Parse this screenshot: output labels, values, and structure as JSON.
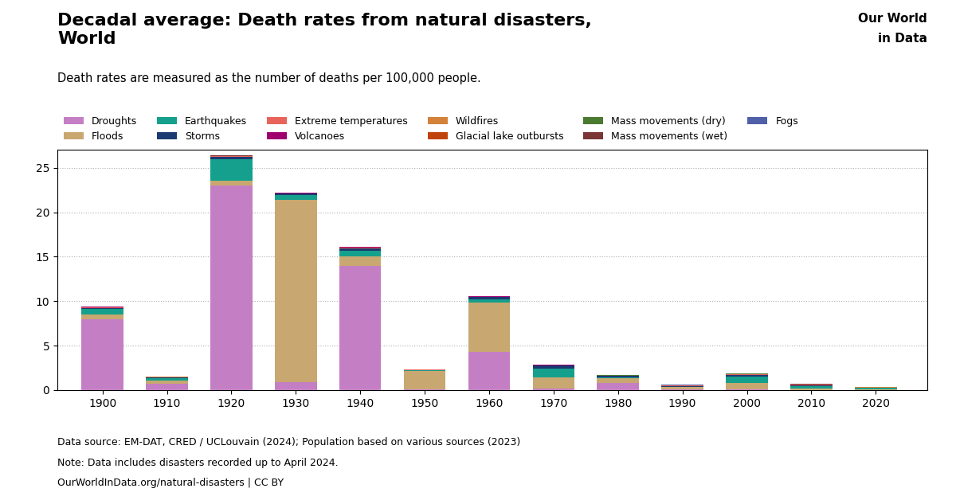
{
  "chart_data": {
    "type": "bar",
    "stacked": true,
    "title": "Decadal average: Death rates from natural disasters,\nWorld",
    "subtitle": "Death rates are measured as the number of deaths per 100,000 people.",
    "annotations": [
      "Data source: EM-DAT, CRED / UCLouvain (2024); Population based on various sources (2023)",
      "Note: Data includes disasters recorded up to April 2024.",
      "OurWorldInData.org/natural-disasters | CC BY",
      "Our World",
      "in Data"
    ],
    "x": [
      1900,
      1910,
      1920,
      1930,
      1940,
      1950,
      1960,
      1970,
      1980,
      1990,
      2000,
      2010,
      2020
    ],
    "xlim": [
      1893,
      2028
    ],
    "xticks": [
      1900,
      1910,
      1920,
      1930,
      1940,
      1950,
      1960,
      1970,
      1980,
      1990,
      2000,
      2010,
      2020
    ],
    "ylim": [
      0,
      27
    ],
    "yticks": [
      0,
      5,
      10,
      15,
      20,
      25
    ],
    "grid": true,
    "legend": "top",
    "series": [
      {
        "name": "Droughts",
        "color": "#c47fc4",
        "values": [
          8.0,
          0.7,
          23.0,
          0.9,
          14.0,
          0.05,
          4.3,
          0.2,
          0.8,
          0.05,
          0.05,
          0.02,
          0.01
        ]
      },
      {
        "name": "Floods",
        "color": "#c8a870",
        "values": [
          0.5,
          0.4,
          0.5,
          20.5,
          1.0,
          2.1,
          5.5,
          1.2,
          0.5,
          0.25,
          0.7,
          0.15,
          0.08
        ]
      },
      {
        "name": "Earthquakes",
        "color": "#14a08c",
        "values": [
          0.6,
          0.2,
          2.5,
          0.5,
          0.7,
          0.05,
          0.4,
          1.0,
          0.15,
          0.08,
          0.75,
          0.3,
          0.12
        ]
      },
      {
        "name": "Storms",
        "color": "#1c3a72",
        "values": [
          0.15,
          0.08,
          0.25,
          0.18,
          0.25,
          0.06,
          0.25,
          0.35,
          0.12,
          0.08,
          0.15,
          0.08,
          0.04
        ]
      },
      {
        "name": "Extreme temperatures",
        "color": "#e8645a",
        "values": [
          0.08,
          0.04,
          0.04,
          0.04,
          0.08,
          0.02,
          0.04,
          0.04,
          0.04,
          0.04,
          0.12,
          0.04,
          0.04
        ]
      },
      {
        "name": "Volcanoes",
        "color": "#a0006e",
        "values": [
          0.04,
          0.04,
          0.04,
          0.04,
          0.04,
          0.01,
          0.04,
          0.04,
          0.01,
          0.01,
          0.01,
          0.01,
          0.005
        ]
      },
      {
        "name": "Wildfires",
        "color": "#d4813a",
        "values": [
          0.01,
          0.01,
          0.01,
          0.01,
          0.01,
          0.01,
          0.01,
          0.01,
          0.01,
          0.03,
          0.03,
          0.04,
          0.01
        ]
      },
      {
        "name": "Glacial lake outbursts",
        "color": "#c0430b",
        "values": [
          0.005,
          0.005,
          0.005,
          0.005,
          0.005,
          0.005,
          0.005,
          0.005,
          0.005,
          0.005,
          0.005,
          0.005,
          0.002
        ]
      },
      {
        "name": "Mass movements (dry)",
        "color": "#4a7a30",
        "values": [
          0.01,
          0.01,
          0.01,
          0.01,
          0.01,
          0.01,
          0.01,
          0.01,
          0.01,
          0.01,
          0.01,
          0.01,
          0.005
        ]
      },
      {
        "name": "Mass movements (wet)",
        "color": "#7a3535",
        "values": [
          0.01,
          0.01,
          0.01,
          0.01,
          0.01,
          0.01,
          0.01,
          0.01,
          0.01,
          0.01,
          0.01,
          0.01,
          0.005
        ]
      },
      {
        "name": "Fogs",
        "color": "#5060a8",
        "values": [
          0.005,
          0.005,
          0.005,
          0.005,
          0.005,
          0.005,
          0.005,
          0.005,
          0.005,
          0.005,
          0.005,
          0.005,
          0.002
        ]
      }
    ]
  }
}
